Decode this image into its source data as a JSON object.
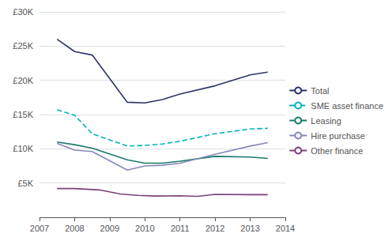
{
  "chart_data": {
    "type": "line",
    "series": [
      {
        "name": "Total",
        "color": "#2d3466",
        "line_style": "solid",
        "x": [
          2007.5,
          2008,
          2008.5,
          2009.5,
          2010,
          2010.5,
          2011,
          2012,
          2013,
          2013.5
        ],
        "values": [
          26000,
          24200,
          23700,
          16800,
          16700,
          17200,
          18000,
          19200,
          20800,
          21200
        ]
      },
      {
        "name": "SME asset finance",
        "color": "#00b5b8",
        "line_style": "dashed",
        "x": [
          2007.5,
          2008,
          2008.5,
          2009.5,
          2010,
          2010.5,
          2011,
          2012,
          2013,
          2013.5
        ],
        "values": [
          15700,
          14900,
          12200,
          10400,
          10500,
          10700,
          11100,
          12200,
          12900,
          13000
        ]
      },
      {
        "name": "Leasing",
        "color": "#1a7a6e",
        "line_style": "solid",
        "x": [
          2007.5,
          2008,
          2008.5,
          2009.5,
          2010,
          2010.5,
          2011,
          2012,
          2013,
          2013.5
        ],
        "values": [
          11000,
          10600,
          10100,
          8400,
          7900,
          7900,
          8200,
          8900,
          8800,
          8600
        ]
      },
      {
        "name": "Hire purchase",
        "color": "#8888bb",
        "line_style": "solid",
        "x": [
          2007.5,
          2008,
          2008.5,
          2009.5,
          2010,
          2010.5,
          2011,
          2012,
          2013,
          2013.5
        ],
        "values": [
          10800,
          9800,
          9600,
          6900,
          7500,
          7600,
          7900,
          9200,
          10400,
          10900
        ]
      },
      {
        "name": "Other finance",
        "color": "#7b3f7b",
        "line_style": "solid",
        "x": [
          2007.5,
          2008,
          2008.7,
          2009.3,
          2009.8,
          2010.3,
          2011,
          2011.5,
          2012,
          2013,
          2013.5
        ],
        "values": [
          4200,
          4200,
          4000,
          3400,
          3200,
          3100,
          3150,
          3050,
          3350,
          3300,
          3300
        ]
      }
    ],
    "xlim": [
      2007,
      2014
    ],
    "xticks": [
      2007,
      2008,
      2009,
      2010,
      2011,
      2012,
      2013,
      2014
    ],
    "ylim": [
      0,
      30000
    ],
    "yticks": [
      {
        "value": 5000,
        "label": "£5K"
      },
      {
        "value": 10000,
        "label": "£10K"
      },
      {
        "value": 15000,
        "label": "£15K"
      },
      {
        "value": 20000,
        "label": "£20K"
      },
      {
        "value": 25000,
        "label": "£25K"
      },
      {
        "value": 30000,
        "label": "£30K"
      }
    ],
    "grid": true,
    "legend": "right"
  }
}
